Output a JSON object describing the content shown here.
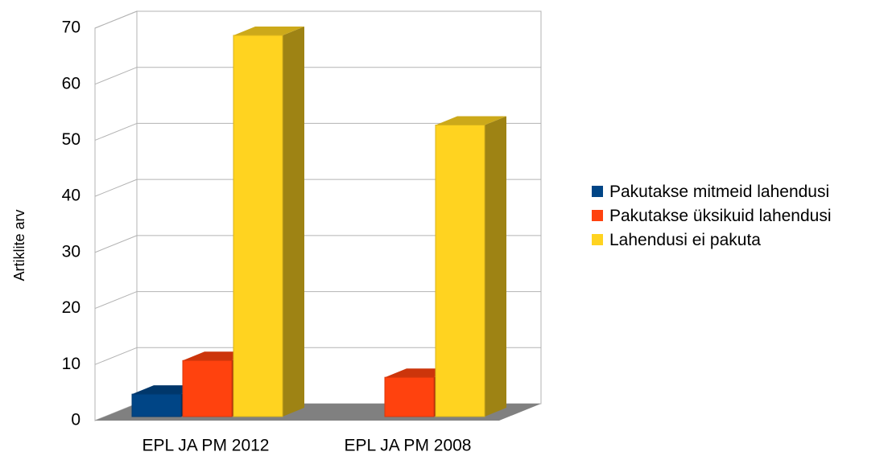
{
  "chart_data": {
    "type": "bar3d",
    "y_label": "Artiklite arv",
    "categories": [
      "EPL JA PM 2012",
      "EPL JA PM 2008"
    ],
    "series": [
      {
        "name": "Pakutakse mitmeid lahendusi",
        "color": "#004586",
        "values": [
          4,
          0
        ]
      },
      {
        "name": " Pakutakse üksikuid lahendusi",
        "color": "#ff420e",
        "values": [
          10,
          7
        ]
      },
      {
        "name": " Lahendusi ei pakuta",
        "color": "#ffd320",
        "values": [
          68,
          52
        ]
      }
    ],
    "ylim": [
      0,
      70
    ],
    "yticks": [
      0,
      10,
      20,
      30,
      40,
      50,
      60,
      70
    ],
    "grid": true,
    "legend": "right"
  }
}
